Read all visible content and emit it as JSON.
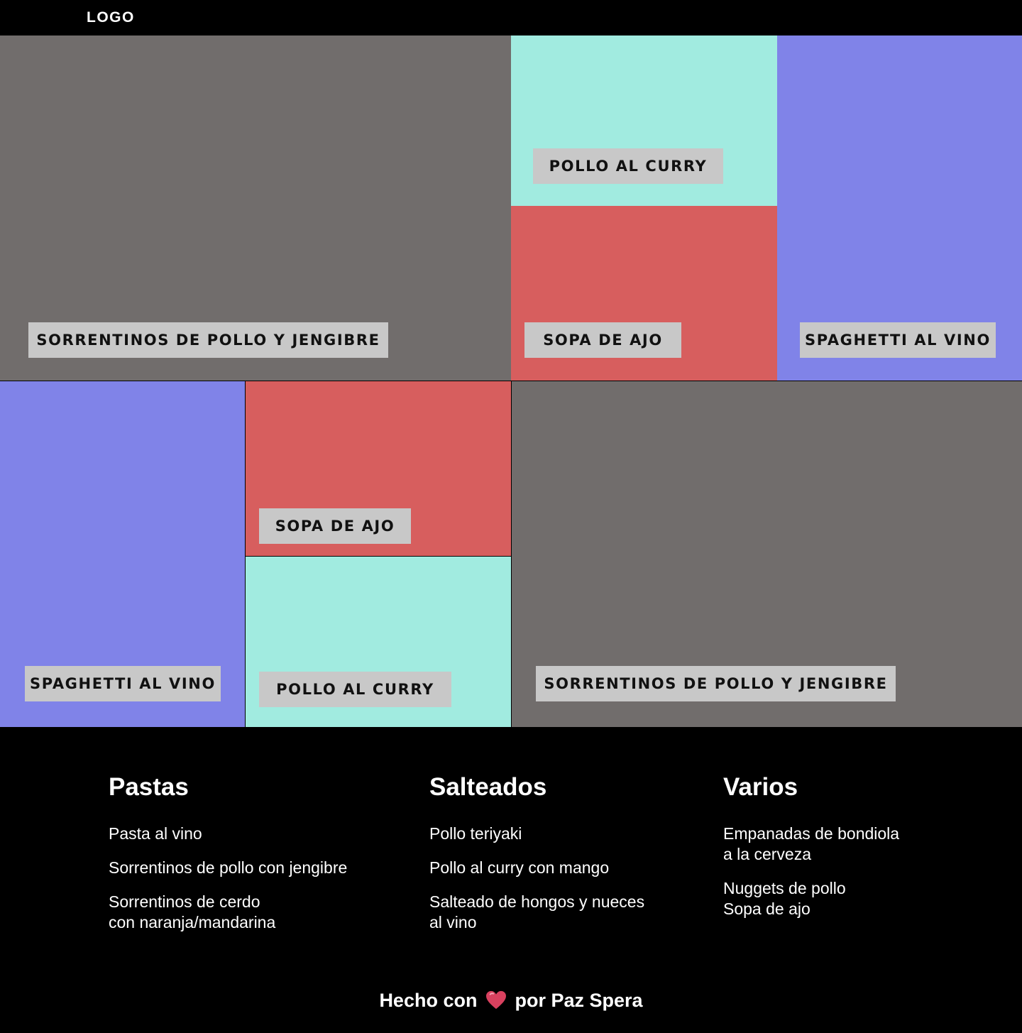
{
  "header": {
    "logo": "LOGO"
  },
  "colors": {
    "gray": "#716d6c",
    "mint": "#a1ebe0",
    "blue": "#8083e8",
    "red": "#d75e5e",
    "label_bg": "#c8c8c8"
  },
  "tiles": [
    {
      "label": "SORRENTINOS DE POLLO Y JENGIBRE",
      "color": "gray"
    },
    {
      "label": "POLLO AL CURRY",
      "color": "mint"
    },
    {
      "label": "SOPA DE AJO",
      "color": "red"
    },
    {
      "label": "SPAGHETTI AL VINO",
      "color": "blue"
    },
    {
      "label": "SPAGHETTI AL VINO",
      "color": "blue"
    },
    {
      "label": "SOPA DE AJO",
      "color": "red"
    },
    {
      "label": "POLLO AL CURRY",
      "color": "mint"
    },
    {
      "label": "SORRENTINOS DE POLLO Y JENGIBRE",
      "color": "gray"
    }
  ],
  "footer": {
    "columns": [
      {
        "title": "Pastas",
        "items": [
          "Pasta al vino",
          "Sorrentinos de pollo con jengibre",
          "Sorrentinos de cerdo\ncon naranja/mandarina"
        ]
      },
      {
        "title": "Salteados",
        "items": [
          "Pollo teriyaki",
          "Pollo al curry con mango",
          "Salteado de hongos y nueces\nal vino"
        ]
      },
      {
        "title": "Varios",
        "items": [
          "Empanadas de bondiola\na la cerveza",
          "Nuggets de pollo\nSopa de ajo"
        ]
      }
    ],
    "credit_before": "Hecho con",
    "credit_icon": "heart-icon",
    "credit_after": "por Paz Spera"
  }
}
